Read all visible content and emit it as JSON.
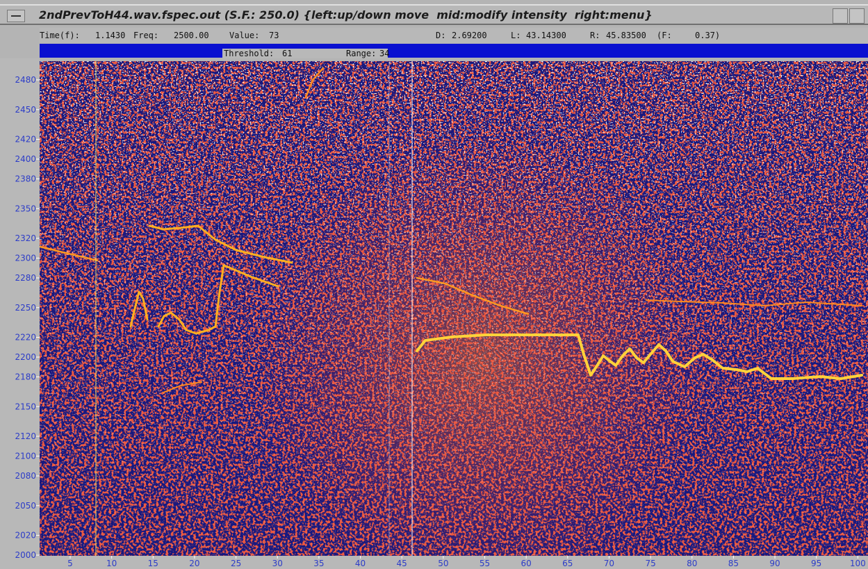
{
  "window": {
    "title": "2ndPrevToH44.wav.fspec.out (S.F.: 250.0) {left:up/down move  mid:modify intensity  right:menu}"
  },
  "status": {
    "time_label": "Time(f):",
    "time": "1.1430",
    "freq_label": "Freq:",
    "freq": "2500.00",
    "value_label": "Value:",
    "value": "73",
    "d_label": "D:",
    "d": "2.69200",
    "l_label": "L:",
    "l": "43.14300",
    "r_label": "R:",
    "r": "45.83500",
    "f_label": "(F:",
    "f": "0.37)"
  },
  "bar": {
    "threshold_label": "Threshold:",
    "threshold": 61,
    "range_label": "Range:",
    "range": 34
  },
  "y_axis": {
    "ticks": [
      2480,
      2450,
      2420,
      2400,
      2380,
      2350,
      2320,
      2300,
      2280,
      2250,
      2220,
      2200,
      2180,
      2150,
      2120,
      2100,
      2080,
      2050,
      2020,
      2000
    ]
  },
  "x_axis": {
    "ticks": [
      5,
      10,
      15,
      20,
      25,
      30,
      35,
      40,
      45,
      50,
      55,
      60,
      65,
      70,
      75,
      80,
      85,
      90,
      95,
      100
    ]
  }
}
